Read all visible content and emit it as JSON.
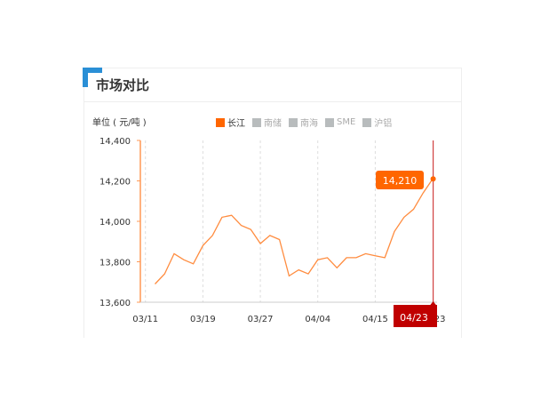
{
  "header": {
    "title": "市场对比"
  },
  "chart_data": {
    "type": "line",
    "unit_label": "单位 ( 元/吨 )",
    "legend": [
      {
        "name": "长江",
        "active": true,
        "color": "#ff6600"
      },
      {
        "name": "南储",
        "active": false
      },
      {
        "name": "南海",
        "active": false
      },
      {
        "name": "SME",
        "active": false
      },
      {
        "name": "沪铝",
        "active": false
      }
    ],
    "x_ticks": [
      {
        "index": 0,
        "label": "03/11"
      },
      {
        "index": 6,
        "label": "03/19"
      },
      {
        "index": 12,
        "label": "03/27"
      },
      {
        "index": 18,
        "label": "04/04"
      },
      {
        "index": 24,
        "label": "04/15"
      },
      {
        "index": 30,
        "label": "04/23"
      }
    ],
    "series": [
      {
        "name": "长江",
        "color": "#ff8c3f",
        "values": [
          null,
          13690,
          13740,
          13840,
          13810,
          13790,
          13880,
          13930,
          14020,
          14030,
          13980,
          13960,
          13890,
          13930,
          13910,
          13730,
          13760,
          13740,
          13810,
          13820,
          13770,
          13820,
          13820,
          13840,
          13830,
          13820,
          13950,
          14020,
          14060,
          14140,
          14210
        ]
      }
    ],
    "ylim": [
      13600,
      14400
    ],
    "y_ticks": [
      "13,600",
      "13,800",
      "14,000",
      "14,200",
      "14,400"
    ],
    "grid": "vertical-dashed",
    "tooltip": {
      "value": "14,210",
      "date": "04/23",
      "color": "#ff6600",
      "date_color": "#c00000"
    }
  }
}
